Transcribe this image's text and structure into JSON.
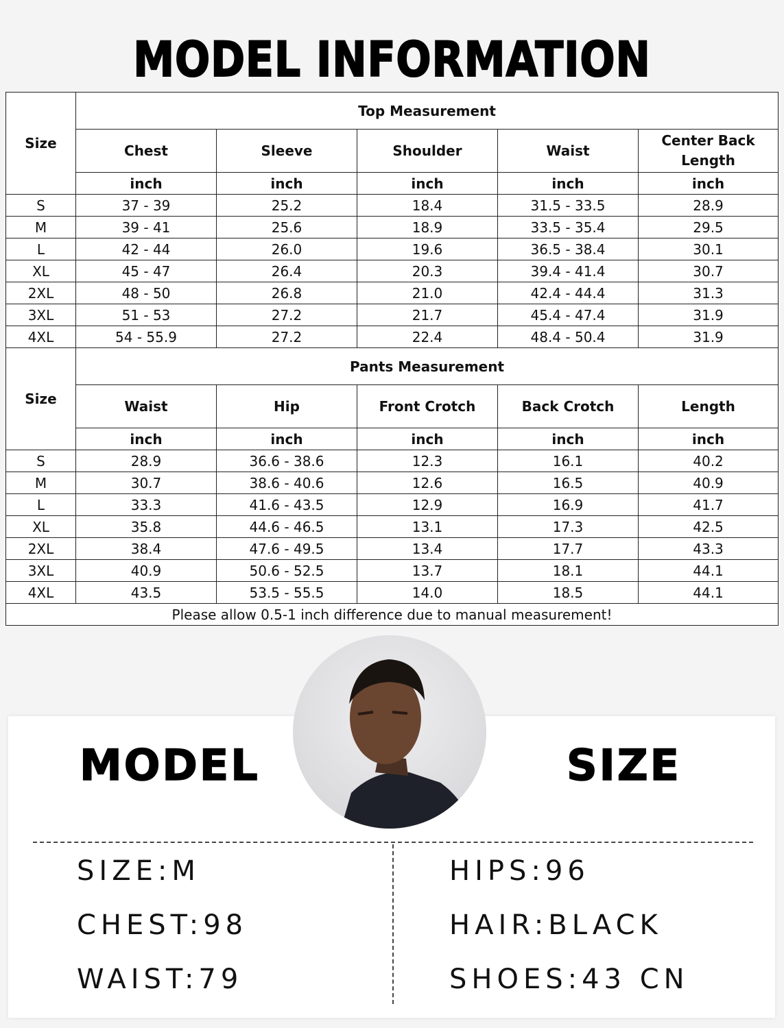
{
  "title": "MODEL INFORMATION",
  "top_table": {
    "section_title": "Top Measurement",
    "size_label": "Size",
    "columns": [
      "Chest",
      "Sleeve",
      "Shoulder",
      "Waist",
      "Center Back Length"
    ],
    "unit": "inch",
    "rows": [
      [
        "S",
        "37 - 39",
        "25.2",
        "18.4",
        "31.5 - 33.5",
        "28.9"
      ],
      [
        "M",
        "39 - 41",
        "25.6",
        "18.9",
        "33.5 - 35.4",
        "29.5"
      ],
      [
        "L",
        "42 - 44",
        "26.0",
        "19.6",
        "36.5 - 38.4",
        "30.1"
      ],
      [
        "XL",
        "45 - 47",
        "26.4",
        "20.3",
        "39.4 - 41.4",
        "30.7"
      ],
      [
        "2XL",
        "48 - 50",
        "26.8",
        "21.0",
        "42.4 - 44.4",
        "31.3"
      ],
      [
        "3XL",
        "51 - 53",
        "27.2",
        "21.7",
        "45.4 - 47.4",
        "31.9"
      ],
      [
        "4XL",
        "54 - 55.9",
        "27.2",
        "22.4",
        "48.4 - 50.4",
        "31.9"
      ]
    ]
  },
  "pants_table": {
    "section_title": "Pants Measurement",
    "size_label": "Size",
    "columns": [
      "Waist",
      "Hip",
      "Front Crotch",
      "Back Crotch",
      "Length"
    ],
    "unit": "inch",
    "rows": [
      [
        "S",
        "28.9",
        "36.6 - 38.6",
        "12.3",
        "16.1",
        "40.2"
      ],
      [
        "M",
        "30.7",
        "38.6 - 40.6",
        "12.6",
        "16.5",
        "40.9"
      ],
      [
        "L",
        "33.3",
        "41.6 - 43.5",
        "12.9",
        "16.9",
        "41.7"
      ],
      [
        "XL",
        "35.8",
        "44.6 - 46.5",
        "13.1",
        "17.3",
        "42.5"
      ],
      [
        "2XL",
        "38.4",
        "47.6 - 49.5",
        "13.4",
        "17.7",
        "43.3"
      ],
      [
        "3XL",
        "40.9",
        "50.6 - 52.5",
        "13.7",
        "18.1",
        "44.1"
      ],
      [
        "4XL",
        "43.5",
        "53.5 - 55.5",
        "14.0",
        "18.5",
        "44.1"
      ]
    ],
    "note": "Please allow 0.5-1 inch difference due to manual measurement!"
  },
  "model_card": {
    "left_heading": "MODEL",
    "right_heading": "SIZE",
    "left_stats": [
      "SIZE:M",
      "CHEST:98",
      "WAIST:79"
    ],
    "right_stats": [
      "HIPS:96",
      "HAIR:BLACK",
      "SHOES:43 CN"
    ]
  }
}
